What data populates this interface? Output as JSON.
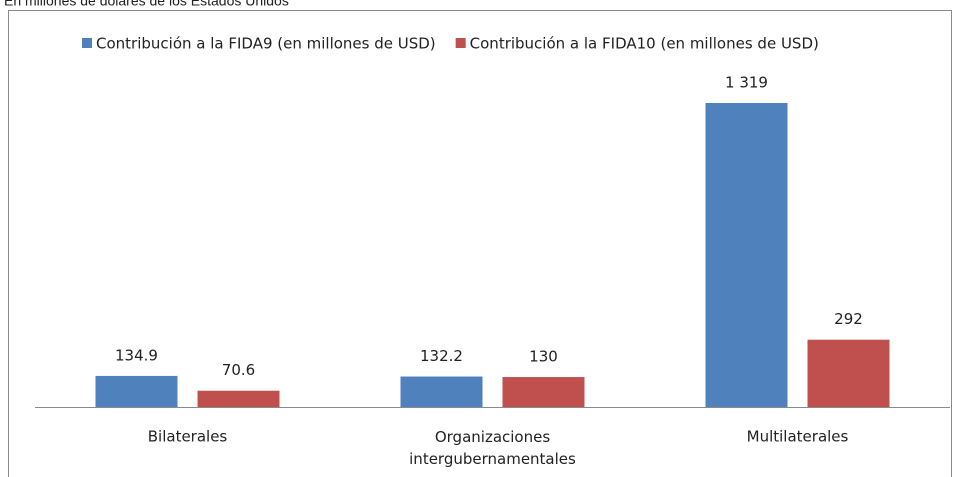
{
  "chart_data": {
    "type": "bar",
    "subtitle": "En millones de dólares de los Estados Unidos",
    "categories": [
      "Bilaterales",
      "Organizaciones intergubernamentales",
      "Multilaterales"
    ],
    "series": [
      {
        "name": "Contribución a la FIDA9 (en millones de USD)",
        "color": "#4f81bd",
        "values": [
          134.9,
          132.2,
          1319
        ],
        "value_labels": [
          "134.9",
          "132.2",
          "1 319"
        ]
      },
      {
        "name": "Contribución a la FIDA10 (en millones de USD)",
        "color": "#c0504d",
        "values": [
          70.6,
          130,
          292
        ]
      }
    ],
    "legend": "top"
  }
}
